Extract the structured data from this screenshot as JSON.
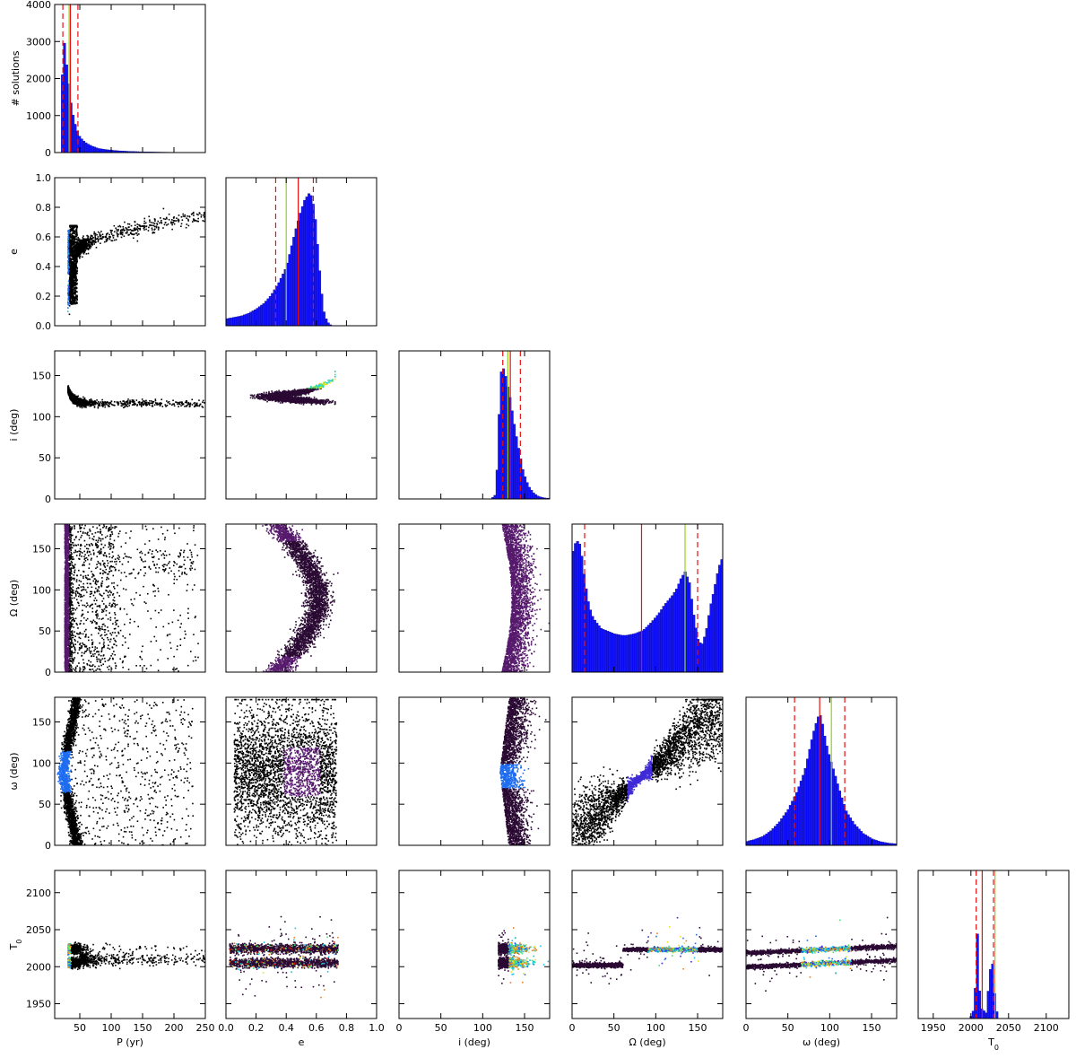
{
  "chart_data": {
    "type": "corner",
    "parameters": [
      {
        "key": "P",
        "label": "P (yr)",
        "range": [
          10,
          250
        ],
        "ticks": [
          50,
          100,
          150,
          200,
          250
        ]
      },
      {
        "key": "e",
        "label": "e",
        "range": [
          0.0,
          1.0
        ],
        "ticks": [
          "0.0",
          "0.2",
          "0.4",
          "0.6",
          "0.8",
          "1.0"
        ]
      },
      {
        "key": "i",
        "label": "i (deg)",
        "range": [
          0,
          180
        ],
        "ticks": [
          0,
          50,
          100,
          150
        ]
      },
      {
        "key": "Omega",
        "label": "Ω (deg)",
        "range": [
          0,
          180
        ],
        "ticks": [
          0,
          50,
          100,
          150
        ]
      },
      {
        "key": "omega",
        "label": "ω (deg)",
        "range": [
          0,
          180
        ],
        "ticks": [
          0,
          50,
          100,
          150
        ]
      },
      {
        "key": "T0",
        "label": "T0",
        "range": [
          1930,
          2130
        ],
        "ticks": [
          1950,
          2000,
          2050,
          2100
        ]
      }
    ],
    "histogram_ylabel": "# solutions",
    "histogram_yrange": [
      0,
      4000
    ],
    "histogram_yticks": [
      0,
      1000,
      2000,
      3000,
      4000
    ],
    "histograms": [
      {
        "param": "P",
        "bins": [
          [
            20,
            900
          ],
          [
            22,
            2100
          ],
          [
            24,
            3100
          ],
          [
            26,
            2900
          ],
          [
            28,
            2500
          ],
          [
            30,
            2200
          ],
          [
            32,
            1900
          ],
          [
            34,
            1600
          ],
          [
            36,
            1300
          ],
          [
            38,
            1100
          ],
          [
            40,
            950
          ],
          [
            42,
            800
          ],
          [
            44,
            680
          ],
          [
            46,
            580
          ],
          [
            48,
            500
          ],
          [
            50,
            420
          ],
          [
            55,
            330
          ],
          [
            60,
            260
          ],
          [
            65,
            210
          ],
          [
            70,
            170
          ],
          [
            75,
            140
          ],
          [
            80,
            110
          ],
          [
            90,
            85
          ],
          [
            100,
            65
          ],
          [
            110,
            50
          ],
          [
            120,
            40
          ],
          [
            130,
            32
          ],
          [
            140,
            26
          ],
          [
            150,
            20
          ],
          [
            170,
            14
          ],
          [
            190,
            10
          ],
          [
            210,
            7
          ],
          [
            230,
            5
          ],
          [
            250,
            3
          ]
        ],
        "median": 35,
        "best": 33,
        "conf_low": 23,
        "conf_high": 47
      },
      {
        "param": "e",
        "bins": [
          [
            0.0,
            0.05
          ],
          [
            0.05,
            0.06
          ],
          [
            0.1,
            0.07
          ],
          [
            0.15,
            0.09
          ],
          [
            0.2,
            0.12
          ],
          [
            0.25,
            0.16
          ],
          [
            0.3,
            0.22
          ],
          [
            0.35,
            0.31
          ],
          [
            0.4,
            0.42
          ],
          [
            0.43,
            0.55
          ],
          [
            0.46,
            0.68
          ],
          [
            0.49,
            0.8
          ],
          [
            0.52,
            0.9
          ],
          [
            0.55,
            0.95
          ],
          [
            0.57,
            0.93
          ],
          [
            0.59,
            0.8
          ],
          [
            0.61,
            0.55
          ],
          [
            0.63,
            0.28
          ],
          [
            0.65,
            0.1
          ],
          [
            0.67,
            0.03
          ],
          [
            0.7,
            0.0
          ]
        ],
        "median": 0.48,
        "best": 0.4,
        "conf_low": 0.33,
        "conf_high": 0.58
      },
      {
        "param": "i",
        "bins": [
          [
            110,
            0
          ],
          [
            115,
            5
          ],
          [
            118,
            50
          ],
          [
            121,
            150
          ],
          [
            124,
            160
          ],
          [
            127,
            150
          ],
          [
            130,
            135
          ],
          [
            133,
            120
          ],
          [
            136,
            100
          ],
          [
            139,
            82
          ],
          [
            142,
            65
          ],
          [
            145,
            50
          ],
          [
            148,
            35
          ],
          [
            151,
            25
          ],
          [
            155,
            15
          ],
          [
            160,
            8
          ],
          [
            165,
            4
          ],
          [
            170,
            2
          ],
          [
            175,
            1
          ]
        ],
        "median": 133,
        "best": 130,
        "conf_low": 124,
        "conf_high": 145
      },
      {
        "param": "Omega",
        "bins": [
          [
            0,
            140
          ],
          [
            5,
            158
          ],
          [
            10,
            152
          ],
          [
            15,
            110
          ],
          [
            20,
            80
          ],
          [
            25,
            65
          ],
          [
            30,
            58
          ],
          [
            35,
            52
          ],
          [
            40,
            50
          ],
          [
            45,
            48
          ],
          [
            50,
            46
          ],
          [
            55,
            45
          ],
          [
            60,
            44
          ],
          [
            65,
            44
          ],
          [
            70,
            45
          ],
          [
            75,
            46
          ],
          [
            80,
            48
          ],
          [
            85,
            50
          ],
          [
            90,
            55
          ],
          [
            95,
            60
          ],
          [
            100,
            66
          ],
          [
            105,
            72
          ],
          [
            110,
            80
          ],
          [
            115,
            86
          ],
          [
            120,
            92
          ],
          [
            125,
            100
          ],
          [
            130,
            112
          ],
          [
            135,
            120
          ],
          [
            140,
            108
          ],
          [
            145,
            70
          ],
          [
            150,
            40
          ],
          [
            155,
            32
          ],
          [
            160,
            48
          ],
          [
            165,
            78
          ],
          [
            170,
            100
          ],
          [
            175,
            125
          ],
          [
            180,
            138
          ]
        ],
        "median": 83,
        "best": 135,
        "conf_low": 15,
        "conf_high": 150
      },
      {
        "param": "omega",
        "bins": [
          [
            0,
            5
          ],
          [
            10,
            8
          ],
          [
            20,
            12
          ],
          [
            30,
            20
          ],
          [
            40,
            32
          ],
          [
            50,
            48
          ],
          [
            60,
            70
          ],
          [
            70,
            100
          ],
          [
            75,
            125
          ],
          [
            80,
            150
          ],
          [
            85,
            170
          ],
          [
            88,
            178
          ],
          [
            91,
            165
          ],
          [
            95,
            140
          ],
          [
            100,
            118
          ],
          [
            105,
            100
          ],
          [
            110,
            80
          ],
          [
            115,
            62
          ],
          [
            120,
            45
          ],
          [
            130,
            28
          ],
          [
            140,
            16
          ],
          [
            150,
            9
          ],
          [
            160,
            5
          ],
          [
            170,
            3
          ],
          [
            180,
            2
          ]
        ],
        "median": 88,
        "best": 102,
        "conf_low": 58,
        "conf_high": 118
      },
      {
        "param": "T0",
        "bins": [
          [
            2000,
            0.02
          ],
          [
            2005,
            0.1
          ],
          [
            2008,
            0.8
          ],
          [
            2010,
            0.6
          ],
          [
            2012,
            0.1
          ],
          [
            2020,
            0.05
          ],
          [
            2026,
            0.45
          ],
          [
            2028,
            0.55
          ],
          [
            2030,
            0.3
          ],
          [
            2035,
            0.02
          ]
        ],
        "median": 2015,
        "best": 2032,
        "conf_low": 2007,
        "conf_high": 2030,
        "ylim": [
          0,
          1.3
        ]
      }
    ],
    "line_styles": {
      "median": {
        "color": "#e81010",
        "style": "solid"
      },
      "best_fit": {
        "color": "#8ed126",
        "style": "solid"
      },
      "confidence": {
        "color": "#e81010",
        "style": "dashed"
      }
    },
    "density_colormap": [
      "#000000",
      "#2a0a33",
      "#56196c",
      "#3f2ad6",
      "#1e6df0",
      "#12c8e6",
      "#46e07a",
      "#e8e021",
      "#f07d10",
      "#e81010"
    ]
  }
}
